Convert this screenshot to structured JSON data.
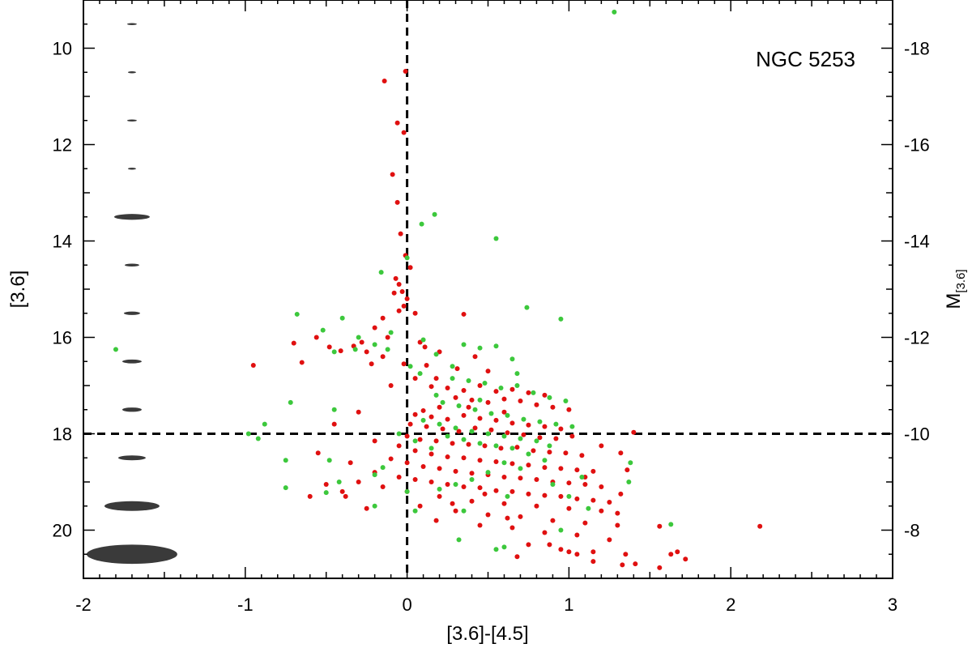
{
  "chart_data": {
    "type": "scatter",
    "annotation": "NGC 5253",
    "xlabel": "[3.6]-[4.5]",
    "ylabel": "[3.6]",
    "y2label_main": "M",
    "y2label_sub": "[3.6]",
    "xlim": [
      -2,
      3
    ],
    "ylim": [
      21,
      9
    ],
    "y2lim": [
      -7,
      -19
    ],
    "xticks": [
      "-2",
      "-1",
      "0",
      "1",
      "2",
      "3"
    ],
    "yticks": [
      "10",
      "12",
      "14",
      "16",
      "18",
      "20"
    ],
    "y2ticks": [
      "-18",
      "-16",
      "-14",
      "-12",
      "-10",
      "-8"
    ],
    "reference_lines": {
      "x": 0,
      "y": 18
    },
    "error_ellipses": [
      {
        "mag": 9.5,
        "dx": 0.03,
        "dy": 0.02
      },
      {
        "mag": 10.5,
        "dx": 0.025,
        "dy": 0.02
      },
      {
        "mag": 11.5,
        "dx": 0.03,
        "dy": 0.02
      },
      {
        "mag": 12.5,
        "dx": 0.025,
        "dy": 0.02
      },
      {
        "mag": 13.5,
        "dx": 0.11,
        "dy": 0.06
      },
      {
        "mag": 14.5,
        "dx": 0.045,
        "dy": 0.03
      },
      {
        "mag": 15.5,
        "dx": 0.05,
        "dy": 0.035
      },
      {
        "mag": 16.5,
        "dx": 0.06,
        "dy": 0.04
      },
      {
        "mag": 17.5,
        "dx": 0.06,
        "dy": 0.045
      },
      {
        "mag": 18.5,
        "dx": 0.085,
        "dy": 0.05
      },
      {
        "mag": 19.5,
        "dx": 0.17,
        "dy": 0.1
      },
      {
        "mag": 20.5,
        "dx": 0.28,
        "dy": 0.2
      }
    ],
    "series": [
      {
        "color": "#e01010",
        "points": [
          [
            -0.14,
            10.68
          ],
          [
            -0.01,
            10.48
          ],
          [
            -0.06,
            11.55
          ],
          [
            -0.02,
            11.75
          ],
          [
            -0.09,
            12.62
          ],
          [
            -0.06,
            13.2
          ],
          [
            -0.04,
            13.85
          ],
          [
            -0.01,
            14.3
          ],
          [
            0.02,
            14.55
          ],
          [
            -0.07,
            14.78
          ],
          [
            -0.05,
            14.9
          ],
          [
            -0.03,
            15.05
          ],
          [
            -0.08,
            15.08
          ],
          [
            0.0,
            15.2
          ],
          [
            -0.02,
            15.35
          ],
          [
            -0.05,
            15.45
          ],
          [
            0.05,
            15.5
          ],
          [
            -0.15,
            15.6
          ],
          [
            -0.2,
            15.8
          ],
          [
            0.35,
            15.52
          ],
          [
            -0.12,
            16.0
          ],
          [
            0.08,
            16.1
          ],
          [
            0.11,
            16.2
          ],
          [
            -0.33,
            16.18
          ],
          [
            -0.48,
            16.2
          ],
          [
            -0.28,
            16.1
          ],
          [
            -0.41,
            16.28
          ],
          [
            -0.15,
            16.4
          ],
          [
            -0.25,
            16.3
          ],
          [
            -0.65,
            16.52
          ],
          [
            -0.95,
            16.58
          ],
          [
            -0.56,
            16.0
          ],
          [
            -0.7,
            16.12
          ],
          [
            -0.22,
            16.55
          ],
          [
            -0.02,
            16.55
          ],
          [
            0.12,
            16.58
          ],
          [
            0.31,
            16.65
          ],
          [
            0.5,
            16.7
          ],
          [
            0.2,
            16.3
          ],
          [
            0.42,
            16.4
          ],
          [
            0.05,
            16.85
          ],
          [
            0.15,
            17.02
          ],
          [
            0.25,
            17.05
          ],
          [
            0.35,
            17.1
          ],
          [
            0.45,
            17.0
          ],
          [
            0.55,
            17.12
          ],
          [
            0.65,
            17.08
          ],
          [
            0.75,
            17.15
          ],
          [
            0.85,
            17.2
          ],
          [
            0.3,
            17.25
          ],
          [
            0.4,
            17.3
          ],
          [
            0.5,
            17.35
          ],
          [
            0.6,
            17.28
          ],
          [
            0.7,
            17.32
          ],
          [
            0.8,
            17.4
          ],
          [
            0.9,
            17.45
          ],
          [
            1.0,
            17.5
          ],
          [
            0.2,
            17.45
          ],
          [
            0.1,
            17.52
          ],
          [
            0.05,
            17.6
          ],
          [
            0.15,
            17.65
          ],
          [
            0.25,
            17.7
          ],
          [
            0.35,
            17.62
          ],
          [
            0.45,
            17.68
          ],
          [
            0.55,
            17.72
          ],
          [
            0.65,
            17.78
          ],
          [
            0.75,
            17.82
          ],
          [
            0.85,
            17.85
          ],
          [
            0.95,
            17.9
          ],
          [
            0.02,
            17.8
          ],
          [
            0.12,
            17.85
          ],
          [
            0.22,
            17.9
          ],
          [
            0.32,
            17.95
          ],
          [
            0.42,
            17.88
          ],
          [
            0.52,
            17.92
          ],
          [
            0.62,
            17.98
          ],
          [
            0.72,
            18.02
          ],
          [
            0.82,
            18.08
          ],
          [
            0.92,
            18.1
          ],
          [
            1.02,
            18.05
          ],
          [
            0.0,
            18.05
          ],
          [
            0.08,
            18.12
          ],
          [
            0.18,
            18.15
          ],
          [
            0.28,
            18.2
          ],
          [
            0.38,
            18.22
          ],
          [
            0.48,
            18.25
          ],
          [
            0.58,
            18.3
          ],
          [
            0.68,
            18.28
          ],
          [
            0.78,
            18.35
          ],
          [
            0.88,
            18.38
          ],
          [
            0.98,
            18.4
          ],
          [
            1.08,
            18.45
          ],
          [
            -0.05,
            18.25
          ],
          [
            0.05,
            18.35
          ],
          [
            0.15,
            18.42
          ],
          [
            0.25,
            18.48
          ],
          [
            0.35,
            18.5
          ],
          [
            0.45,
            18.55
          ],
          [
            0.55,
            18.58
          ],
          [
            0.65,
            18.62
          ],
          [
            0.75,
            18.65
          ],
          [
            0.85,
            18.7
          ],
          [
            0.95,
            18.72
          ],
          [
            1.05,
            18.75
          ],
          [
            1.15,
            18.78
          ],
          [
            -0.1,
            18.52
          ],
          [
            0.0,
            18.6
          ],
          [
            0.1,
            18.68
          ],
          [
            0.2,
            18.72
          ],
          [
            0.3,
            18.78
          ],
          [
            0.4,
            18.82
          ],
          [
            0.5,
            18.85
          ],
          [
            0.6,
            18.9
          ],
          [
            0.7,
            18.92
          ],
          [
            0.8,
            18.95
          ],
          [
            0.9,
            19.0
          ],
          [
            1.0,
            19.02
          ],
          [
            1.1,
            19.05
          ],
          [
            1.2,
            19.1
          ],
          [
            -0.2,
            18.8
          ],
          [
            -0.05,
            18.9
          ],
          [
            0.05,
            18.95
          ],
          [
            0.15,
            19.0
          ],
          [
            0.25,
            19.05
          ],
          [
            0.35,
            19.1
          ],
          [
            0.45,
            19.12
          ],
          [
            0.55,
            19.18
          ],
          [
            0.65,
            19.2
          ],
          [
            0.75,
            19.25
          ],
          [
            0.85,
            19.28
          ],
          [
            0.95,
            19.3
          ],
          [
            1.05,
            19.35
          ],
          [
            1.15,
            19.38
          ],
          [
            1.25,
            19.42
          ],
          [
            -0.3,
            19.0
          ],
          [
            -0.15,
            19.1
          ],
          [
            0.0,
            19.2
          ],
          [
            0.2,
            19.3
          ],
          [
            0.4,
            19.4
          ],
          [
            0.6,
            19.45
          ],
          [
            0.8,
            19.5
          ],
          [
            1.0,
            19.55
          ],
          [
            1.2,
            19.6
          ],
          [
            1.3,
            19.65
          ],
          [
            -0.4,
            19.2
          ],
          [
            -0.5,
            19.05
          ],
          [
            -0.38,
            19.3
          ],
          [
            0.3,
            19.6
          ],
          [
            0.5,
            19.68
          ],
          [
            0.7,
            19.72
          ],
          [
            0.9,
            19.8
          ],
          [
            1.1,
            19.85
          ],
          [
            1.3,
            19.9
          ],
          [
            0.45,
            19.9
          ],
          [
            0.65,
            19.95
          ],
          [
            0.85,
            20.05
          ],
          [
            1.05,
            20.1
          ],
          [
            1.25,
            20.2
          ],
          [
            0.75,
            20.3
          ],
          [
            0.95,
            20.4
          ],
          [
            1.15,
            20.45
          ],
          [
            1.35,
            20.5
          ],
          [
            0.68,
            20.55
          ],
          [
            0.88,
            20.3
          ],
          [
            1.0,
            20.45
          ],
          [
            1.05,
            20.5
          ],
          [
            1.15,
            20.65
          ],
          [
            1.33,
            20.72
          ],
          [
            1.41,
            20.7
          ],
          [
            1.56,
            20.78
          ],
          [
            1.63,
            20.5
          ],
          [
            1.67,
            20.45
          ],
          [
            1.72,
            20.6
          ],
          [
            1.56,
            19.92
          ],
          [
            1.32,
            18.4
          ],
          [
            1.36,
            18.75
          ],
          [
            1.4,
            17.97
          ],
          [
            2.18,
            19.92
          ],
          [
            -0.3,
            17.55
          ],
          [
            -0.45,
            17.8
          ],
          [
            -0.2,
            18.15
          ],
          [
            -0.55,
            18.4
          ],
          [
            -0.35,
            18.6
          ],
          [
            -0.6,
            19.3
          ],
          [
            -0.25,
            19.55
          ],
          [
            -0.1,
            17.0
          ],
          [
            0.18,
            16.85
          ],
          [
            0.38,
            17.45
          ],
          [
            0.6,
            17.55
          ],
          [
            1.1,
            18.9
          ],
          [
            1.2,
            18.25
          ],
          [
            1.32,
            19.25
          ],
          [
            0.28,
            19.45
          ],
          [
            0.48,
            19.25
          ],
          [
            0.62,
            19.75
          ],
          [
            0.18,
            19.8
          ],
          [
            0.08,
            19.5
          ]
        ]
      },
      {
        "color": "#3cc83c",
        "points": [
          [
            1.28,
            9.25
          ],
          [
            0.17,
            13.45
          ],
          [
            0.55,
            13.95
          ],
          [
            0.09,
            13.65
          ],
          [
            -0.16,
            14.65
          ],
          [
            0.0,
            14.35
          ],
          [
            0.74,
            15.38
          ],
          [
            0.95,
            15.62
          ],
          [
            -0.68,
            15.52
          ],
          [
            -0.4,
            15.6
          ],
          [
            -0.52,
            15.85
          ],
          [
            -0.3,
            16.0
          ],
          [
            -0.2,
            16.15
          ],
          [
            -0.1,
            15.9
          ],
          [
            0.1,
            16.05
          ],
          [
            -0.32,
            16.25
          ],
          [
            -0.45,
            16.3
          ],
          [
            -1.8,
            16.25
          ],
          [
            0.18,
            16.35
          ],
          [
            0.35,
            16.15
          ],
          [
            0.45,
            16.22
          ],
          [
            0.55,
            16.18
          ],
          [
            0.65,
            16.45
          ],
          [
            0.02,
            16.6
          ],
          [
            0.08,
            16.75
          ],
          [
            0.28,
            16.85
          ],
          [
            0.38,
            16.9
          ],
          [
            0.48,
            16.95
          ],
          [
            0.58,
            17.05
          ],
          [
            0.68,
            17.0
          ],
          [
            0.78,
            17.15
          ],
          [
            0.88,
            17.25
          ],
          [
            0.98,
            17.32
          ],
          [
            0.18,
            17.2
          ],
          [
            0.22,
            17.35
          ],
          [
            0.32,
            17.42
          ],
          [
            0.42,
            17.5
          ],
          [
            0.52,
            17.58
          ],
          [
            0.62,
            17.62
          ],
          [
            0.72,
            17.7
          ],
          [
            0.82,
            17.75
          ],
          [
            0.92,
            17.8
          ],
          [
            1.02,
            17.85
          ],
          [
            0.1,
            17.72
          ],
          [
            0.2,
            17.8
          ],
          [
            0.3,
            17.88
          ],
          [
            0.4,
            17.95
          ],
          [
            0.5,
            18.0
          ],
          [
            0.6,
            18.05
          ],
          [
            0.7,
            18.1
          ],
          [
            0.8,
            18.15
          ],
          [
            0.25,
            18.05
          ],
          [
            0.35,
            18.12
          ],
          [
            0.45,
            18.2
          ],
          [
            0.55,
            18.25
          ],
          [
            0.65,
            18.3
          ],
          [
            0.15,
            18.3
          ],
          [
            0.05,
            18.15
          ],
          [
            -0.05,
            18.0
          ],
          [
            0.75,
            18.42
          ],
          [
            0.85,
            18.55
          ],
          [
            0.6,
            18.6
          ],
          [
            0.7,
            18.72
          ],
          [
            0.5,
            18.8
          ],
          [
            0.4,
            18.95
          ],
          [
            0.3,
            19.05
          ],
          [
            0.2,
            19.15
          ],
          [
            0.0,
            19.2
          ],
          [
            0.9,
            19.05
          ],
          [
            1.0,
            19.3
          ],
          [
            1.12,
            19.55
          ],
          [
            0.62,
            19.3
          ],
          [
            0.35,
            19.6
          ],
          [
            -0.45,
            17.5
          ],
          [
            -0.48,
            18.55
          ],
          [
            -0.72,
            17.35
          ],
          [
            -0.88,
            17.8
          ],
          [
            -0.98,
            18.0
          ],
          [
            -0.92,
            18.1
          ],
          [
            -0.75,
            18.55
          ],
          [
            -0.75,
            19.12
          ],
          [
            -0.2,
            18.85
          ],
          [
            -0.15,
            18.7
          ],
          [
            -0.42,
            19.0
          ],
          [
            -0.5,
            19.22
          ],
          [
            -0.2,
            19.5
          ],
          [
            0.05,
            19.6
          ],
          [
            0.32,
            20.2
          ],
          [
            0.55,
            20.4
          ],
          [
            0.6,
            20.35
          ],
          [
            0.95,
            20.0
          ],
          [
            1.38,
            18.6
          ],
          [
            1.37,
            19.0
          ],
          [
            1.63,
            19.88
          ],
          [
            -0.12,
            16.25
          ],
          [
            0.45,
            17.3
          ],
          [
            0.28,
            16.6
          ],
          [
            0.68,
            16.75
          ],
          [
            0.88,
            18.25
          ],
          [
            1.08,
            18.9
          ]
        ]
      }
    ]
  }
}
